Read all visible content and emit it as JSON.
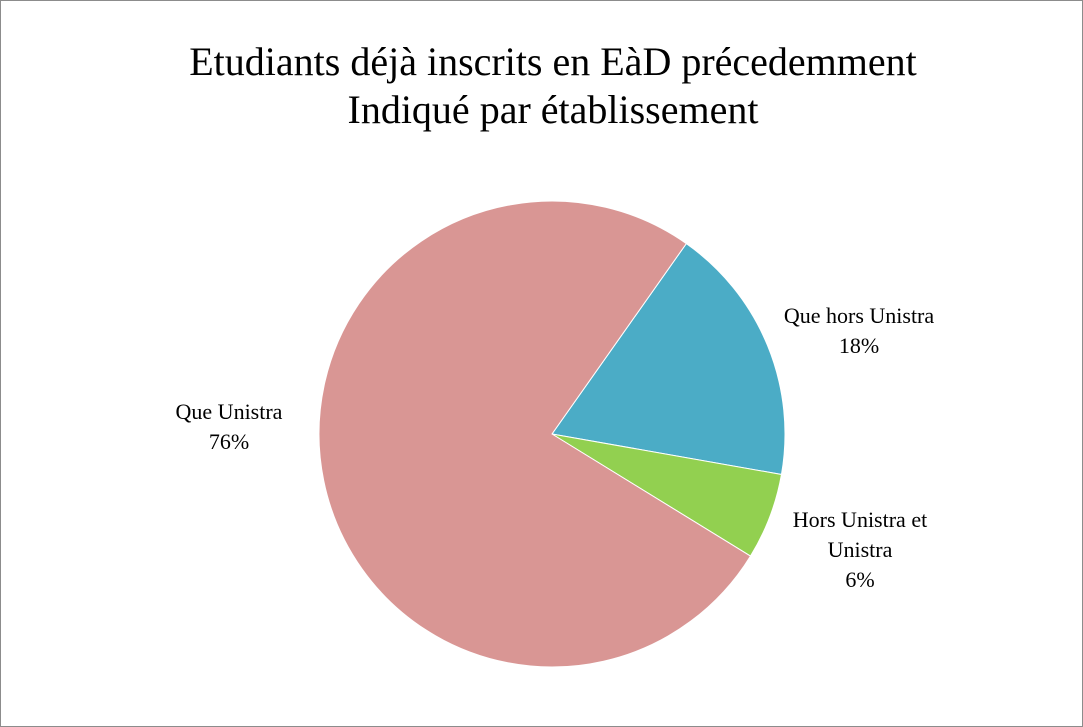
{
  "chart_data": {
    "type": "pie",
    "title": [
      "Etudiants déjà inscrits en EàD précedemment",
      "Indiqué par établissement"
    ],
    "categories": [
      "Que hors Unistra",
      "Hors Unistra et Unistra",
      "Que Unistra"
    ],
    "values": [
      18,
      6,
      76
    ],
    "value_labels": [
      "18%",
      "6%",
      "76%"
    ],
    "colors": [
      "#4bacc6",
      "#92d050",
      "#d99694"
    ]
  }
}
